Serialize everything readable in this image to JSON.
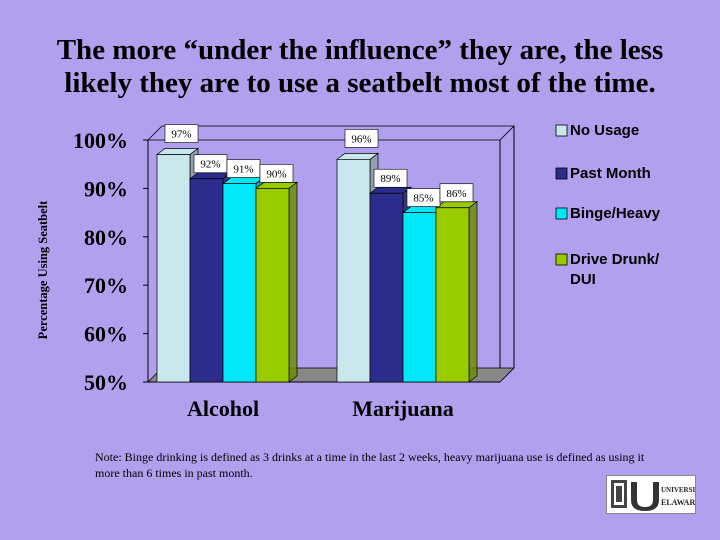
{
  "title": "The more “under the influence” they are, the less likely they are to use a seatbelt most of the time.",
  "note": "Note: Binge drinking is defined as 3 drinks at a time in the last 2 weeks, heavy marijuana use is defined as using it more than 6 times in past month.",
  "logo": {
    "text_top": "UNIVERSITY OF",
    "text_bottom": "ELAWARE"
  },
  "chart_data": {
    "type": "bar",
    "ylabel": "Percentage Using Seatbelt",
    "xlabel": "",
    "ylim": [
      50,
      100
    ],
    "yticks": [
      "100%",
      "90%",
      "80%",
      "70%",
      "60%",
      "50%"
    ],
    "ytick_values": [
      100,
      90,
      80,
      70,
      60,
      50
    ],
    "categories": [
      "Alcohol",
      "Marijuana"
    ],
    "series": [
      {
        "name": "No Usage",
        "values": [
          97,
          96
        ],
        "labels": [
          "97%",
          "96%"
        ],
        "color": "#c8e8ec"
      },
      {
        "name": "Past Month",
        "values": [
          92,
          89
        ],
        "labels": [
          "92%",
          "89%"
        ],
        "color": "#2c2c8c"
      },
      {
        "name": "Binge/Heavy",
        "values": [
          91,
          85
        ],
        "labels": [
          "91%",
          "85%"
        ],
        "color": "#00e8f8"
      },
      {
        "name": "Drive Drunk/ DUI",
        "values": [
          90,
          86
        ],
        "labels": [
          "90%",
          "86%"
        ],
        "color": "#99cc00"
      }
    ],
    "legend_position": "right",
    "grid": false
  }
}
